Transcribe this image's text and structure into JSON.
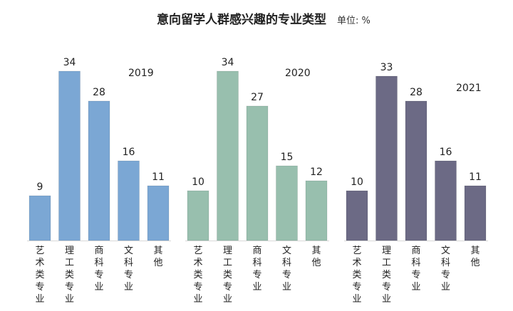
{
  "title": "意向留学人群感兴趣的专业类型",
  "unit_label": "单位: %",
  "chart_data": [
    {
      "type": "bar",
      "year": "2019",
      "color": "#7BA7D4",
      "categories": [
        "艺术类专业",
        "理工类专业",
        "商科专业",
        "文科专业",
        "其他"
      ],
      "values": [
        9,
        34,
        28,
        16,
        11
      ]
    },
    {
      "type": "bar",
      "year": "2020",
      "color": "#98BFAE",
      "categories": [
        "艺术类专业",
        "理工类专业",
        "商科专业",
        "文科专业",
        "其他"
      ],
      "values": [
        10,
        34,
        27,
        15,
        12
      ]
    },
    {
      "type": "bar",
      "year": "2021",
      "color": "#6C6A85",
      "categories": [
        "艺术类专业",
        "理工类专业",
        "商科专业",
        "文科专业",
        "其他"
      ],
      "values": [
        10,
        33,
        28,
        16,
        11
      ]
    }
  ]
}
